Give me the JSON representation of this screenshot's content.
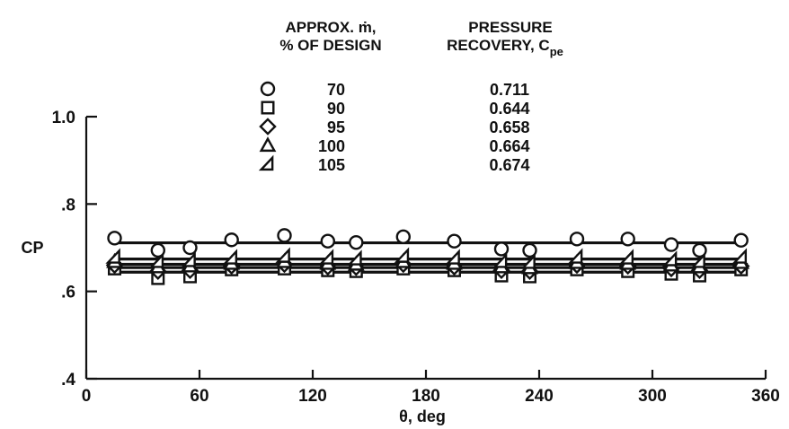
{
  "chart_data": {
    "type": "scatter",
    "title": "",
    "xlabel": "θ, deg",
    "ylabel": "CP",
    "xlim": [
      0,
      360
    ],
    "ylim": [
      0.4,
      1.0
    ],
    "x_ticks": [
      "0",
      "60",
      "120",
      "180",
      "240",
      "300",
      "360"
    ],
    "y_ticks": [
      ".4",
      ".6",
      ".8",
      "1.0"
    ],
    "legend": {
      "placement": "top-center",
      "header_col1_line1": "APPROX. ṁ,",
      "header_col1_line2": "% OF DESIGN",
      "header_col2_line1": "PRESSURE",
      "header_col2_line2": "RECOVERY, C",
      "header_col2_sub": "pe"
    },
    "series": [
      {
        "name": "70",
        "marker": "circle",
        "recovery": "0.711",
        "x": [
          15,
          38,
          55,
          77,
          105,
          128,
          143,
          168,
          195,
          220,
          235,
          260,
          287,
          310,
          325,
          347
        ],
        "y": [
          0.722,
          0.694,
          0.7,
          0.718,
          0.728,
          0.715,
          0.712,
          0.725,
          0.715,
          0.697,
          0.694,
          0.72,
          0.72,
          0.707,
          0.694,
          0.717
        ]
      },
      {
        "name": "90",
        "marker": "square",
        "recovery": "0.644",
        "x": [
          15,
          38,
          55,
          77,
          105,
          128,
          143,
          168,
          195,
          220,
          235,
          260,
          287,
          310,
          325,
          347
        ],
        "y": [
          0.652,
          0.63,
          0.634,
          0.65,
          0.652,
          0.648,
          0.646,
          0.652,
          0.648,
          0.636,
          0.634,
          0.65,
          0.646,
          0.64,
          0.636,
          0.65
        ]
      },
      {
        "name": "95",
        "marker": "diamond",
        "recovery": "0.658",
        "x": [
          15,
          38,
          55,
          77,
          105,
          128,
          143,
          168,
          195,
          220,
          235,
          260,
          287,
          310,
          325,
          347
        ],
        "y": [
          0.66,
          0.646,
          0.648,
          0.658,
          0.662,
          0.656,
          0.655,
          0.662,
          0.656,
          0.648,
          0.646,
          0.66,
          0.658,
          0.652,
          0.648,
          0.658
        ]
      },
      {
        "name": "100",
        "marker": "triangle",
        "recovery": "0.664",
        "x": [
          15,
          38,
          55,
          77,
          105,
          128,
          143,
          168,
          195,
          220,
          235,
          260,
          287,
          310,
          325,
          347
        ],
        "y": [
          0.668,
          0.656,
          0.658,
          0.664,
          0.668,
          0.664,
          0.662,
          0.668,
          0.664,
          0.656,
          0.654,
          0.666,
          0.664,
          0.66,
          0.656,
          0.666
        ]
      },
      {
        "name": "105",
        "marker": "half-triangle",
        "recovery": "0.674",
        "x": [
          15,
          38,
          55,
          77,
          105,
          128,
          143,
          168,
          195,
          220,
          235,
          260,
          287,
          310,
          325,
          347
        ],
        "y": [
          0.678,
          0.668,
          0.67,
          0.676,
          0.68,
          0.676,
          0.674,
          0.68,
          0.676,
          0.668,
          0.666,
          0.678,
          0.676,
          0.672,
          0.668,
          0.678
        ]
      }
    ]
  }
}
